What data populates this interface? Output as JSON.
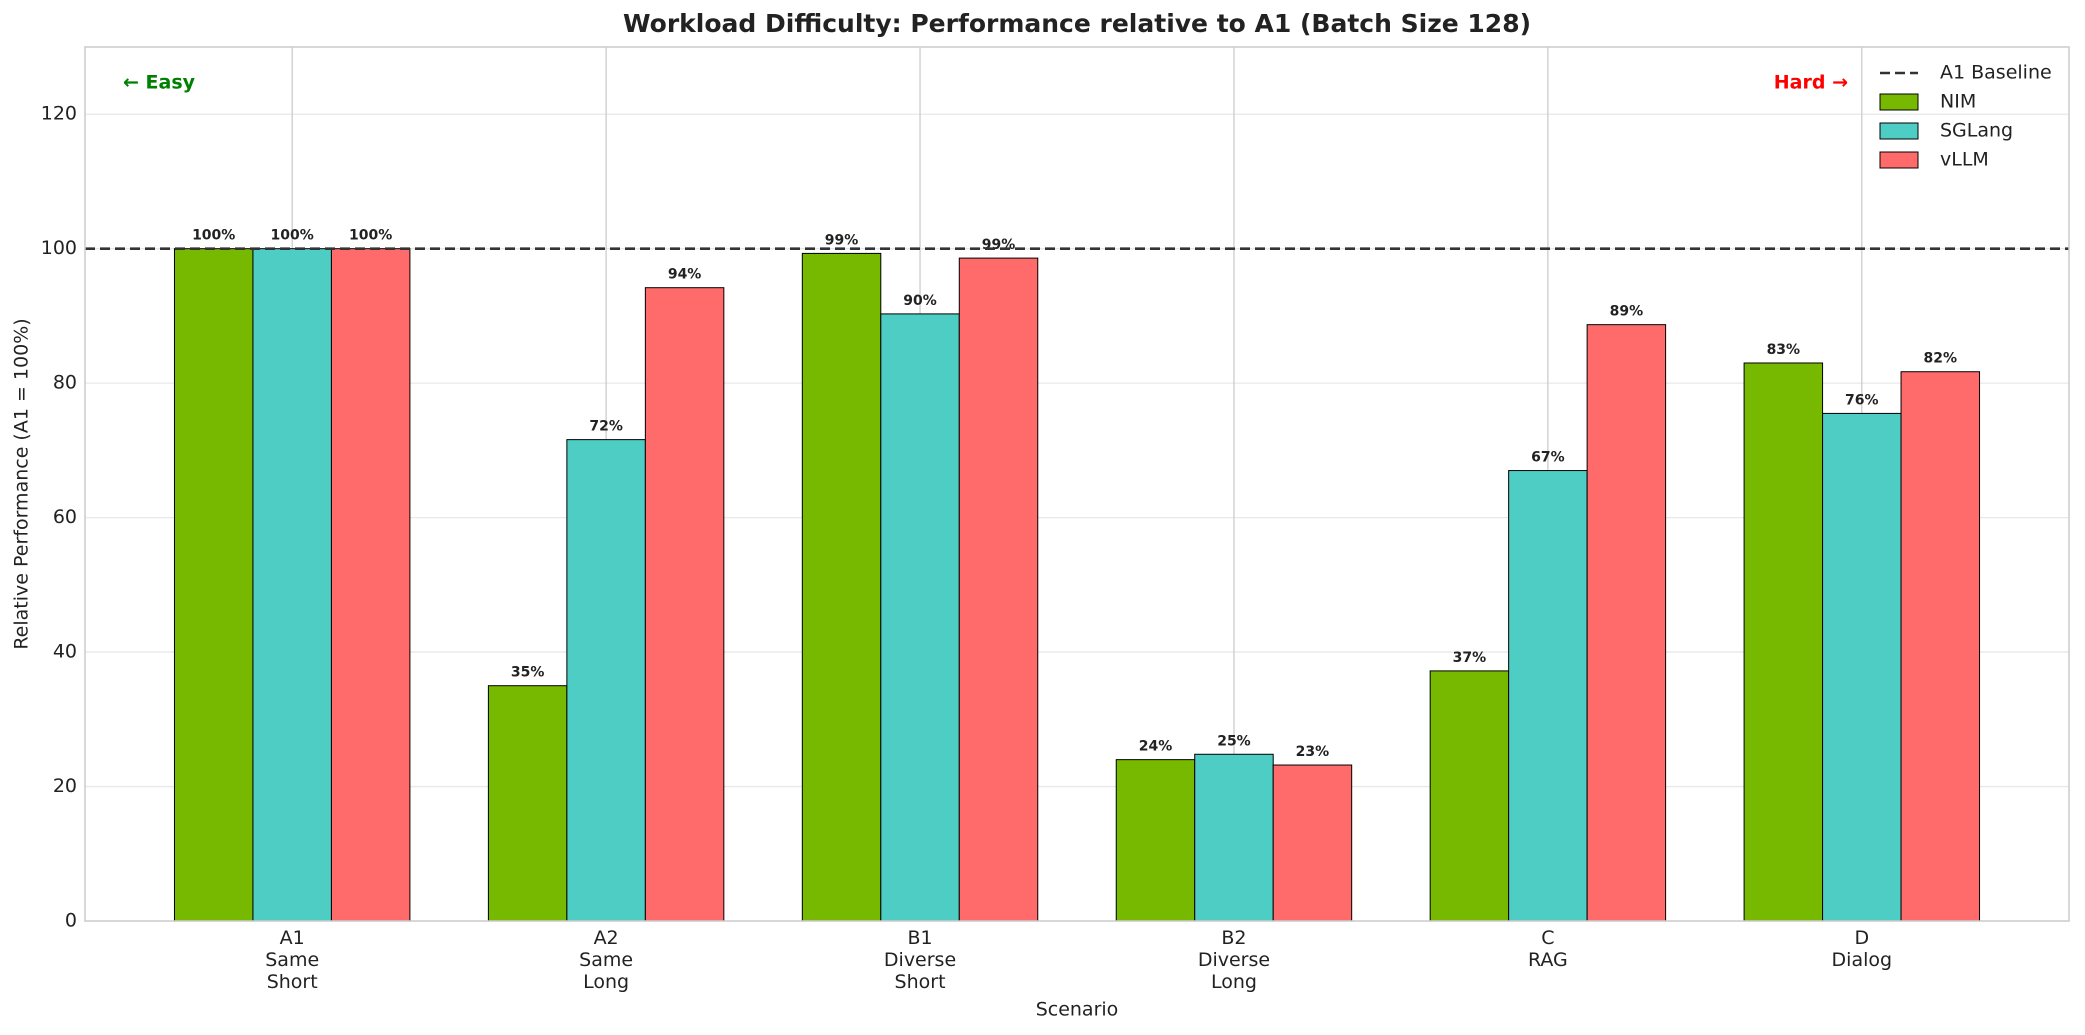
{
  "chart_data": {
    "type": "bar",
    "title": "Workload Difficulty: Performance relative to A1 (Batch Size 128)",
    "xlabel": "Scenario",
    "ylabel": "Relative Performance (A1 = 100%)",
    "categories": [
      "A1\nSame\nShort",
      "A2\nSame\nLong",
      "B1\nDiverse\nShort",
      "B2\nDiverse\nLong",
      "C\nRAG",
      "D\nDialog"
    ],
    "series": [
      {
        "name": "NIM",
        "color": "#76b900",
        "values": [
          100,
          35,
          99.3,
          24,
          37.2,
          83
        ],
        "value_labels": [
          "100%",
          "35%",
          "99%",
          "24%",
          "37%",
          "83%"
        ]
      },
      {
        "name": "SGLang",
        "color": "#4ecdc4",
        "values": [
          100,
          71.6,
          90.3,
          24.8,
          67,
          75.5
        ],
        "value_labels": [
          "100%",
          "72%",
          "90%",
          "25%",
          "67%",
          "76%"
        ]
      },
      {
        "name": "vLLM",
        "color": "#ff6b6b",
        "values": [
          100,
          94.2,
          98.6,
          23.2,
          88.7,
          81.7
        ],
        "value_labels": [
          "100%",
          "94%",
          "99%",
          "23%",
          "89%",
          "82%"
        ]
      }
    ],
    "baseline": {
      "name": "A1 Baseline",
      "value": 100,
      "color": "#333333"
    },
    "annotations": [
      {
        "text": "← Easy",
        "color": "#008000"
      },
      {
        "text": "Hard →",
        "color": "#ff0000"
      }
    ],
    "ylim": [
      0,
      130
    ],
    "yticks": [
      0,
      20,
      40,
      60,
      80,
      100,
      120
    ],
    "grid": true,
    "legend": "upper right"
  }
}
